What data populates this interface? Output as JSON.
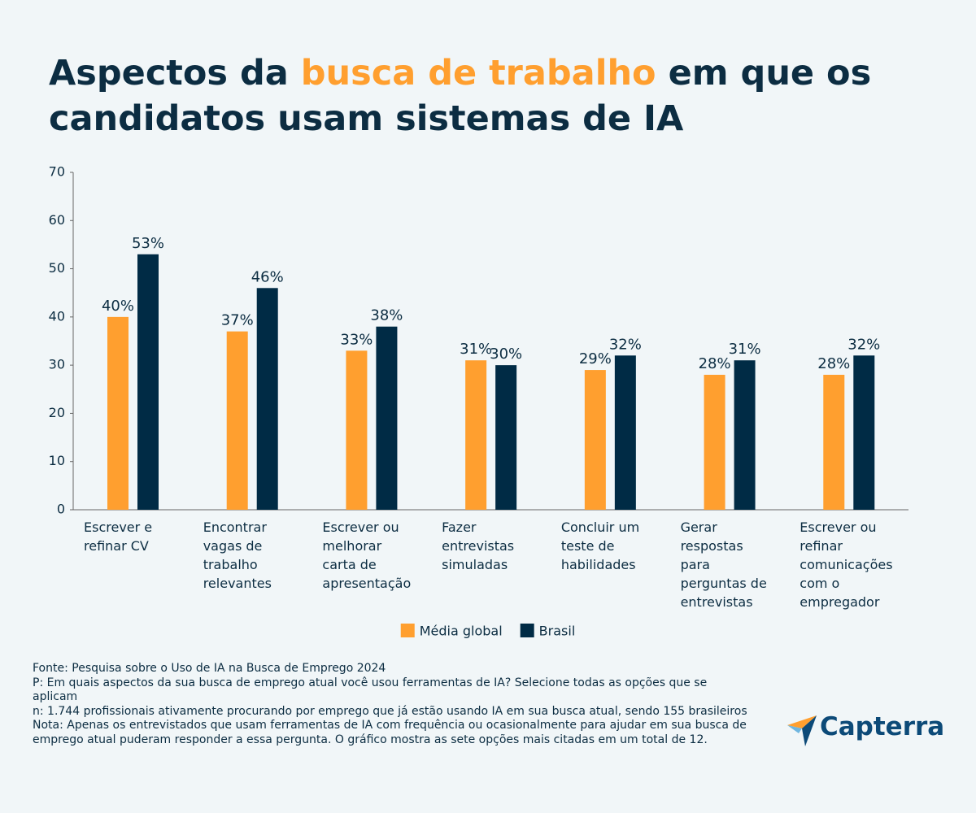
{
  "chart_data": {
    "type": "bar",
    "title": {
      "before": "Aspectos da",
      "highlight": "busca de trabalho",
      "after": "em que os candidatos usam sistemas de IA"
    },
    "categories": [
      "Escrever e\nrefinar CV",
      "Encontrar\nvagas de\ntrabalho\nrelevantes",
      "Escrever ou\nmelhorar\ncarta de\napresentação",
      "Fazer\nentrevistas\nsimuladas",
      "Concluir um\nteste de\nhabilidades",
      "Gerar\nrespostas\npara\nperguntas de\nentrevistas",
      "Escrever ou\nrefinar\ncomunicações\ncom o\nempregador"
    ],
    "series": [
      {
        "name": "Média global",
        "color": "#ff9f2f",
        "values": [
          40,
          37,
          33,
          31,
          29,
          28,
          28
        ],
        "value_labels": [
          "40%",
          "37%",
          "33%",
          "31%",
          "29%",
          "28%",
          "28%"
        ]
      },
      {
        "name": "Brasil",
        "color": "#002b45",
        "values": [
          53,
          46,
          38,
          30,
          32,
          31,
          32
        ],
        "value_labels": [
          "53%",
          "46%",
          "38%",
          "30%",
          "32%",
          "31%",
          "32%"
        ]
      }
    ],
    "ylim": [
      0,
      70
    ],
    "yticks": [
      0,
      10,
      20,
      30,
      40,
      50,
      60,
      70
    ],
    "grid": false
  },
  "footer": {
    "lines": [
      "Fonte: Pesquisa sobre o Uso de IA na Busca de Emprego 2024",
      "P: Em quais aspectos da sua busca de emprego atual você usou ferramentas de IA? Selecione todas as opções que se aplicam",
      "n: 1.744 profissionais ativamente procurando por emprego que já estão usando IA em sua busca atual, sendo 155 brasileiros",
      "Nota: Apenas os entrevistados que usam ferramentas de IA com frequência ou ocasionalmente para ajudar em sua busca de emprego atual puderam responder a essa pergunta. O gráfico mostra as sete opções mais citadas em um total de 12."
    ]
  },
  "logo": {
    "text": "Capterra"
  }
}
